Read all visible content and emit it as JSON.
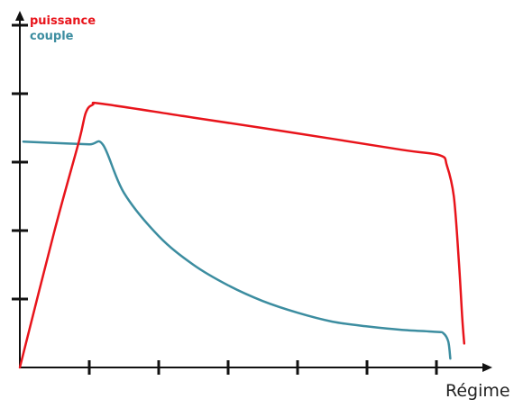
{
  "chart_data": {
    "type": "line",
    "title": "",
    "xlabel": "Régime",
    "ylabel": "",
    "xlim": [
      0,
      7
    ],
    "ylim": [
      0,
      5.2
    ],
    "x_ticks": [
      1,
      2,
      3,
      4,
      5,
      6
    ],
    "y_ticks": [
      1,
      2,
      3,
      4,
      5
    ],
    "tick_labels_shown": false,
    "grid": false,
    "legend": "top-left",
    "series": [
      {
        "name": "puissance",
        "color": "#e8141b",
        "points": [
          [
            0.0,
            0.0
          ],
          [
            0.5,
            2.0
          ],
          [
            0.85,
            3.3
          ],
          [
            0.95,
            3.72
          ],
          [
            1.05,
            3.84
          ],
          [
            1.2,
            3.85
          ],
          [
            2.5,
            3.65
          ],
          [
            4.0,
            3.42
          ],
          [
            5.5,
            3.18
          ],
          [
            6.05,
            3.1
          ],
          [
            6.15,
            2.95
          ],
          [
            6.25,
            2.5
          ],
          [
            6.32,
            1.6
          ],
          [
            6.37,
            0.75
          ],
          [
            6.4,
            0.35
          ]
        ]
      },
      {
        "name": "couple",
        "color": "#3c8da0",
        "points": [
          [
            0.05,
            3.3
          ],
          [
            0.5,
            3.28
          ],
          [
            1.0,
            3.26
          ],
          [
            1.2,
            3.25
          ],
          [
            1.5,
            2.55
          ],
          [
            2.0,
            1.92
          ],
          [
            2.5,
            1.5
          ],
          [
            3.0,
            1.2
          ],
          [
            3.5,
            0.97
          ],
          [
            4.0,
            0.8
          ],
          [
            4.5,
            0.67
          ],
          [
            5.0,
            0.6
          ],
          [
            5.5,
            0.55
          ],
          [
            6.0,
            0.52
          ],
          [
            6.1,
            0.5
          ],
          [
            6.17,
            0.38
          ],
          [
            6.2,
            0.13
          ]
        ]
      }
    ]
  }
}
